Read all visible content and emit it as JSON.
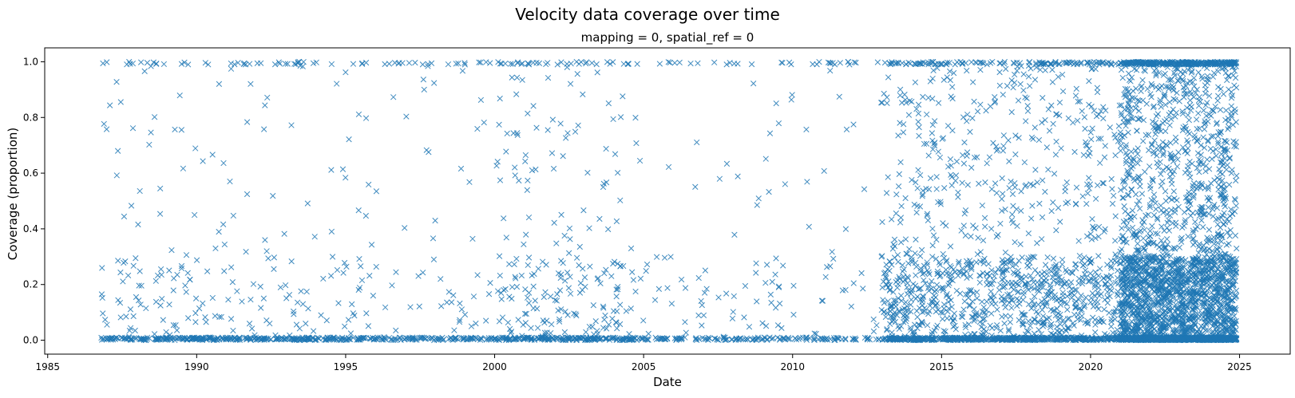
{
  "chart_data": {
    "type": "scatter",
    "title": "Velocity data coverage over time",
    "subtitle": "mapping = 0, spatial_ref = 0",
    "xlabel": "Date",
    "ylabel": "Coverage (proportion)",
    "xlim": [
      1984.9,
      2026.7
    ],
    "ylim": [
      -0.05,
      1.05
    ],
    "x_ticks": [
      1985,
      1990,
      1995,
      2000,
      2005,
      2010,
      2015,
      2020,
      2025
    ],
    "y_ticks": [
      0.0,
      0.2,
      0.4,
      0.6,
      0.8,
      1.0
    ],
    "x_tick_labels": [
      "1985",
      "1990",
      "1995",
      "2000",
      "2005",
      "2010",
      "2015",
      "2020",
      "2025"
    ],
    "y_tick_labels": [
      "0.0",
      "0.2",
      "0.4",
      "0.6",
      "0.8",
      "1.0"
    ],
    "marker": "x",
    "color": "#1f77b4",
    "grid": false,
    "legend": "none",
    "density_by_period": [
      {
        "start": 1986.8,
        "end": 1990.0,
        "points_per_year": 70,
        "zero_fraction": 0.55
      },
      {
        "start": 1990.0,
        "end": 1995.0,
        "points_per_year": 60,
        "zero_fraction": 0.6
      },
      {
        "start": 1995.0,
        "end": 2000.0,
        "points_per_year": 45,
        "zero_fraction": 0.55
      },
      {
        "start": 2000.0,
        "end": 2005.0,
        "points_per_year": 90,
        "zero_fraction": 0.45
      },
      {
        "start": 2005.0,
        "end": 2013.0,
        "points_per_year": 35,
        "zero_fraction": 0.55
      },
      {
        "start": 2013.0,
        "end": 2021.0,
        "points_per_year": 230,
        "zero_fraction": 0.3
      },
      {
        "start": 2021.0,
        "end": 2024.9,
        "points_per_year": 900,
        "zero_fraction": 0.3
      }
    ]
  }
}
